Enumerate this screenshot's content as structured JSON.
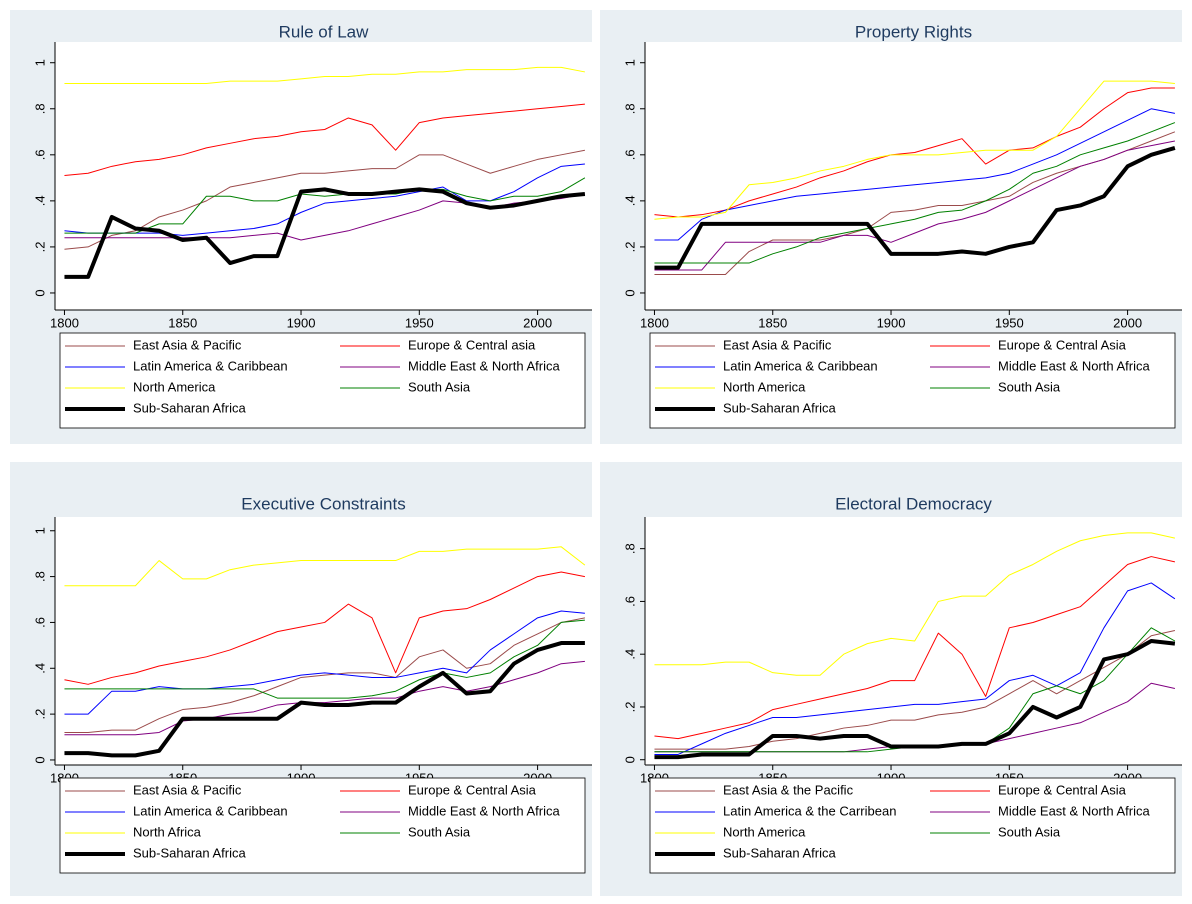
{
  "chart_data": [
    {
      "type": "line",
      "title": "Rule of Law",
      "x": [
        1800,
        1810,
        1820,
        1830,
        1840,
        1850,
        1860,
        1870,
        1880,
        1890,
        1900,
        1910,
        1920,
        1930,
        1940,
        1950,
        1960,
        1970,
        1980,
        1990,
        2000,
        2010,
        2020
      ],
      "xlim": [
        1796,
        2023
      ],
      "ylim": [
        -0.074,
        1.09
      ],
      "xticks": [
        1800,
        1850,
        1900,
        1950,
        2000
      ],
      "yticks": [
        0,
        {
          "value": 0.2,
          "label": ".2"
        },
        {
          "value": 0.4,
          "label": ".4"
        },
        {
          "value": 0.6,
          "label": ".6"
        },
        {
          "value": 0.8,
          "label": ".8"
        },
        1
      ],
      "series": [
        {
          "name": "East Asia & Pacific",
          "color": "#9b4b4b",
          "width": 1,
          "values": [
            0.19,
            0.2,
            0.25,
            0.27,
            0.33,
            0.36,
            0.4,
            0.46,
            0.48,
            0.5,
            0.52,
            0.52,
            0.53,
            0.54,
            0.54,
            0.6,
            0.6,
            0.56,
            0.52,
            0.55,
            0.58,
            0.6,
            0.62
          ]
        },
        {
          "name": "Europe & Central asia",
          "color": "#ff0000",
          "width": 1,
          "values": [
            0.51,
            0.52,
            0.55,
            0.57,
            0.58,
            0.6,
            0.63,
            0.65,
            0.67,
            0.68,
            0.7,
            0.71,
            0.76,
            0.73,
            0.62,
            0.74,
            0.76,
            0.77,
            0.78,
            0.79,
            0.8,
            0.81,
            0.82
          ]
        },
        {
          "name": "Latin America & Caribbean",
          "color": "#0000ff",
          "width": 1,
          "values": [
            0.27,
            0.26,
            0.26,
            0.26,
            0.26,
            0.25,
            0.26,
            0.27,
            0.28,
            0.3,
            0.35,
            0.39,
            0.4,
            0.41,
            0.42,
            0.44,
            0.46,
            0.4,
            0.4,
            0.44,
            0.5,
            0.55,
            0.56
          ]
        },
        {
          "name": "Middle East & North Africa",
          "color": "#800080",
          "width": 1,
          "values": [
            0.24,
            0.24,
            0.24,
            0.24,
            0.24,
            0.24,
            0.24,
            0.24,
            0.25,
            0.26,
            0.23,
            0.25,
            0.27,
            0.3,
            0.33,
            0.36,
            0.4,
            0.39,
            0.37,
            0.39,
            0.4,
            0.41,
            0.43
          ]
        },
        {
          "name": "North America",
          "color": "#ffff00",
          "width": 1,
          "values": [
            0.91,
            0.91,
            0.91,
            0.91,
            0.91,
            0.91,
            0.91,
            0.92,
            0.92,
            0.92,
            0.93,
            0.94,
            0.94,
            0.95,
            0.95,
            0.96,
            0.96,
            0.97,
            0.97,
            0.97,
            0.98,
            0.98,
            0.96
          ]
        },
        {
          "name": "South Asia",
          "color": "#008000",
          "width": 1,
          "values": [
            0.26,
            0.26,
            0.26,
            0.26,
            0.3,
            0.3,
            0.42,
            0.42,
            0.4,
            0.4,
            0.43,
            0.42,
            0.43,
            0.43,
            0.43,
            0.45,
            0.45,
            0.42,
            0.4,
            0.42,
            0.42,
            0.44,
            0.5
          ]
        },
        {
          "name": "Sub-Saharan Africa",
          "color": "#000000",
          "width": 4,
          "values": [
            0.07,
            0.07,
            0.33,
            0.28,
            0.27,
            0.23,
            0.24,
            0.13,
            0.16,
            0.16,
            0.44,
            0.45,
            0.43,
            0.43,
            0.44,
            0.45,
            0.44,
            0.39,
            0.37,
            0.38,
            0.4,
            0.42,
            0.43
          ]
        }
      ]
    },
    {
      "type": "line",
      "title": "Property Rights",
      "x": [
        1800,
        1810,
        1820,
        1830,
        1840,
        1850,
        1860,
        1870,
        1880,
        1890,
        1900,
        1910,
        1920,
        1930,
        1940,
        1950,
        1960,
        1970,
        1980,
        1990,
        2000,
        2010,
        2020
      ],
      "xlim": [
        1796,
        2023
      ],
      "ylim": [
        -0.074,
        1.09
      ],
      "xticks": [
        1800,
        1850,
        1900,
        1950,
        2000
      ],
      "yticks": [
        0,
        {
          "value": 0.2,
          "label": ".2"
        },
        {
          "value": 0.4,
          "label": ".4"
        },
        {
          "value": 0.6,
          "label": ".6"
        },
        {
          "value": 0.8,
          "label": ".8"
        },
        1
      ],
      "series": [
        {
          "name": "East Asia & Pacific",
          "color": "#9b4b4b",
          "width": 1,
          "values": [
            0.08,
            0.08,
            0.08,
            0.08,
            0.18,
            0.23,
            0.23,
            0.23,
            0.25,
            0.28,
            0.35,
            0.36,
            0.38,
            0.38,
            0.4,
            0.42,
            0.48,
            0.52,
            0.55,
            0.58,
            0.62,
            0.66,
            0.7
          ]
        },
        {
          "name": "Europe & Central Asia",
          "color": "#ff0000",
          "width": 1,
          "values": [
            0.34,
            0.33,
            0.34,
            0.36,
            0.4,
            0.43,
            0.46,
            0.5,
            0.53,
            0.57,
            0.6,
            0.61,
            0.64,
            0.67,
            0.56,
            0.62,
            0.63,
            0.68,
            0.72,
            0.8,
            0.87,
            0.89,
            0.89
          ]
        },
        {
          "name": "Latin America & Caribbean",
          "color": "#0000ff",
          "width": 1,
          "values": [
            0.23,
            0.23,
            0.32,
            0.36,
            0.38,
            0.4,
            0.42,
            0.43,
            0.44,
            0.45,
            0.46,
            0.47,
            0.48,
            0.49,
            0.5,
            0.52,
            0.56,
            0.6,
            0.65,
            0.7,
            0.75,
            0.8,
            0.78
          ]
        },
        {
          "name": "Middle East & North Africa",
          "color": "#800080",
          "width": 1,
          "values": [
            0.1,
            0.1,
            0.1,
            0.22,
            0.22,
            0.22,
            0.22,
            0.22,
            0.25,
            0.25,
            0.22,
            0.26,
            0.3,
            0.32,
            0.35,
            0.4,
            0.45,
            0.5,
            0.55,
            0.58,
            0.62,
            0.64,
            0.66
          ]
        },
        {
          "name": "North America",
          "color": "#ffff00",
          "width": 1,
          "values": [
            0.32,
            0.33,
            0.33,
            0.35,
            0.47,
            0.48,
            0.5,
            0.53,
            0.55,
            0.58,
            0.6,
            0.6,
            0.6,
            0.61,
            0.62,
            0.62,
            0.62,
            0.68,
            0.8,
            0.92,
            0.92,
            0.92,
            0.91
          ]
        },
        {
          "name": "South Asia",
          "color": "#008000",
          "width": 1,
          "values": [
            0.13,
            0.13,
            0.13,
            0.13,
            0.13,
            0.17,
            0.2,
            0.24,
            0.26,
            0.28,
            0.3,
            0.32,
            0.35,
            0.36,
            0.4,
            0.45,
            0.52,
            0.55,
            0.6,
            0.63,
            0.66,
            0.7,
            0.74
          ]
        },
        {
          "name": "Sub-Saharan Africa",
          "color": "#000000",
          "width": 4,
          "values": [
            0.11,
            0.11,
            0.3,
            0.3,
            0.3,
            0.3,
            0.3,
            0.3,
            0.3,
            0.3,
            0.17,
            0.17,
            0.17,
            0.18,
            0.17,
            0.2,
            0.22,
            0.36,
            0.38,
            0.42,
            0.55,
            0.6,
            0.63
          ]
        }
      ]
    },
    {
      "type": "line",
      "title": "Executive Constraints",
      "x": [
        1800,
        1810,
        1820,
        1830,
        1840,
        1850,
        1860,
        1870,
        1880,
        1890,
        1900,
        1910,
        1920,
        1930,
        1940,
        1950,
        1960,
        1970,
        1980,
        1990,
        2000,
        2010,
        2020
      ],
      "xlim": [
        1796,
        2023
      ],
      "ylim": [
        -0.022,
        1.06
      ],
      "xticks": [
        1800,
        1850,
        1900,
        1950,
        2000
      ],
      "yticks": [
        0,
        {
          "value": 0.2,
          "label": ".2"
        },
        {
          "value": 0.4,
          "label": ".4"
        },
        {
          "value": 0.6,
          "label": ".6"
        },
        {
          "value": 0.8,
          "label": ".8"
        },
        1
      ],
      "series": [
        {
          "name": "East Asia & Pacific",
          "color": "#9b4b4b",
          "width": 1,
          "values": [
            0.12,
            0.12,
            0.13,
            0.13,
            0.18,
            0.22,
            0.23,
            0.25,
            0.28,
            0.32,
            0.36,
            0.37,
            0.38,
            0.38,
            0.36,
            0.45,
            0.48,
            0.4,
            0.42,
            0.5,
            0.55,
            0.6,
            0.62
          ]
        },
        {
          "name": "Europe & Central Asia",
          "color": "#ff0000",
          "width": 1,
          "values": [
            0.35,
            0.33,
            0.36,
            0.38,
            0.41,
            0.43,
            0.45,
            0.48,
            0.52,
            0.56,
            0.58,
            0.6,
            0.68,
            0.62,
            0.38,
            0.62,
            0.65,
            0.66,
            0.7,
            0.75,
            0.8,
            0.82,
            0.8
          ]
        },
        {
          "name": "Latin America & Caribbean",
          "color": "#0000ff",
          "width": 1,
          "values": [
            0.2,
            0.2,
            0.3,
            0.3,
            0.32,
            0.31,
            0.31,
            0.32,
            0.33,
            0.35,
            0.37,
            0.38,
            0.37,
            0.36,
            0.36,
            0.38,
            0.4,
            0.38,
            0.48,
            0.55,
            0.62,
            0.65,
            0.64
          ]
        },
        {
          "name": "Middle East & North Africa",
          "color": "#800080",
          "width": 1,
          "values": [
            0.11,
            0.11,
            0.11,
            0.11,
            0.12,
            0.17,
            0.18,
            0.2,
            0.21,
            0.24,
            0.25,
            0.25,
            0.26,
            0.27,
            0.27,
            0.3,
            0.32,
            0.3,
            0.32,
            0.35,
            0.38,
            0.42,
            0.43
          ]
        },
        {
          "name": "North Africa",
          "color": "#ffff00",
          "width": 1,
          "values": [
            0.76,
            0.76,
            0.76,
            0.76,
            0.87,
            0.79,
            0.79,
            0.83,
            0.85,
            0.86,
            0.87,
            0.87,
            0.87,
            0.87,
            0.87,
            0.91,
            0.91,
            0.92,
            0.92,
            0.92,
            0.92,
            0.93,
            0.85
          ]
        },
        {
          "name": "South Asia",
          "color": "#008000",
          "width": 1,
          "values": [
            0.31,
            0.31,
            0.31,
            0.31,
            0.31,
            0.31,
            0.31,
            0.31,
            0.31,
            0.27,
            0.27,
            0.27,
            0.27,
            0.28,
            0.3,
            0.35,
            0.38,
            0.36,
            0.38,
            0.45,
            0.5,
            0.6,
            0.61
          ]
        },
        {
          "name": "Sub-Saharan Africa",
          "color": "#000000",
          "width": 4,
          "values": [
            0.03,
            0.03,
            0.02,
            0.02,
            0.04,
            0.18,
            0.18,
            0.18,
            0.18,
            0.18,
            0.25,
            0.24,
            0.24,
            0.25,
            0.25,
            0.32,
            0.38,
            0.29,
            0.3,
            0.42,
            0.48,
            0.51,
            0.51
          ]
        }
      ]
    },
    {
      "type": "line",
      "title": "Electoral Democracy",
      "x": [
        1800,
        1810,
        1820,
        1830,
        1840,
        1850,
        1860,
        1870,
        1880,
        1890,
        1900,
        1910,
        1920,
        1930,
        1940,
        1950,
        1960,
        1970,
        1980,
        1990,
        2000,
        2010,
        2020
      ],
      "xlim": [
        1796,
        2023
      ],
      "ylim": [
        -0.02,
        0.92
      ],
      "xticks": [
        1800,
        1850,
        1900,
        1950,
        2000
      ],
      "yticks": [
        0,
        {
          "value": 0.2,
          "label": ".2"
        },
        {
          "value": 0.4,
          "label": ".4"
        },
        {
          "value": 0.6,
          "label": ".6"
        },
        {
          "value": 0.8,
          "label": ".8"
        }
      ],
      "series": [
        {
          "name": "East Asia & the Pacific",
          "color": "#9b4b4b",
          "width": 1,
          "values": [
            0.04,
            0.04,
            0.04,
            0.04,
            0.05,
            0.07,
            0.08,
            0.1,
            0.12,
            0.13,
            0.15,
            0.15,
            0.17,
            0.18,
            0.2,
            0.25,
            0.3,
            0.25,
            0.3,
            0.35,
            0.4,
            0.47,
            0.49
          ]
        },
        {
          "name": "Europe & Central Asia",
          "color": "#ff0000",
          "width": 1,
          "values": [
            0.09,
            0.08,
            0.1,
            0.12,
            0.14,
            0.19,
            0.21,
            0.23,
            0.25,
            0.27,
            0.3,
            0.3,
            0.48,
            0.4,
            0.24,
            0.5,
            0.52,
            0.55,
            0.58,
            0.66,
            0.74,
            0.77,
            0.75
          ]
        },
        {
          "name": "Latin America & the Carribean",
          "color": "#0000ff",
          "width": 1,
          "values": [
            0.02,
            0.02,
            0.06,
            0.1,
            0.13,
            0.16,
            0.16,
            0.17,
            0.18,
            0.19,
            0.2,
            0.21,
            0.21,
            0.22,
            0.23,
            0.3,
            0.32,
            0.28,
            0.33,
            0.5,
            0.64,
            0.67,
            0.61
          ]
        },
        {
          "name": "Middle East & North Africa",
          "color": "#800080",
          "width": 1,
          "values": [
            0.03,
            0.03,
            0.03,
            0.03,
            0.03,
            0.03,
            0.03,
            0.03,
            0.03,
            0.04,
            0.05,
            0.05,
            0.05,
            0.06,
            0.06,
            0.08,
            0.1,
            0.12,
            0.14,
            0.18,
            0.22,
            0.29,
            0.27
          ]
        },
        {
          "name": "North America",
          "color": "#ffff00",
          "width": 1,
          "values": [
            0.36,
            0.36,
            0.36,
            0.37,
            0.37,
            0.33,
            0.32,
            0.32,
            0.4,
            0.44,
            0.46,
            0.45,
            0.6,
            0.62,
            0.62,
            0.7,
            0.74,
            0.79,
            0.83,
            0.85,
            0.86,
            0.86,
            0.84
          ]
        },
        {
          "name": "South Asia",
          "color": "#008000",
          "width": 1,
          "values": [
            0.03,
            0.03,
            0.03,
            0.03,
            0.03,
            0.03,
            0.03,
            0.03,
            0.03,
            0.03,
            0.04,
            0.05,
            0.05,
            0.06,
            0.06,
            0.12,
            0.25,
            0.28,
            0.25,
            0.3,
            0.4,
            0.5,
            0.45
          ]
        },
        {
          "name": "Sub-Saharan Africa",
          "color": "#000000",
          "width": 4,
          "values": [
            0.01,
            0.01,
            0.02,
            0.02,
            0.02,
            0.09,
            0.09,
            0.08,
            0.09,
            0.09,
            0.05,
            0.05,
            0.05,
            0.06,
            0.06,
            0.1,
            0.2,
            0.16,
            0.2,
            0.38,
            0.4,
            0.45,
            0.44
          ]
        }
      ]
    }
  ]
}
